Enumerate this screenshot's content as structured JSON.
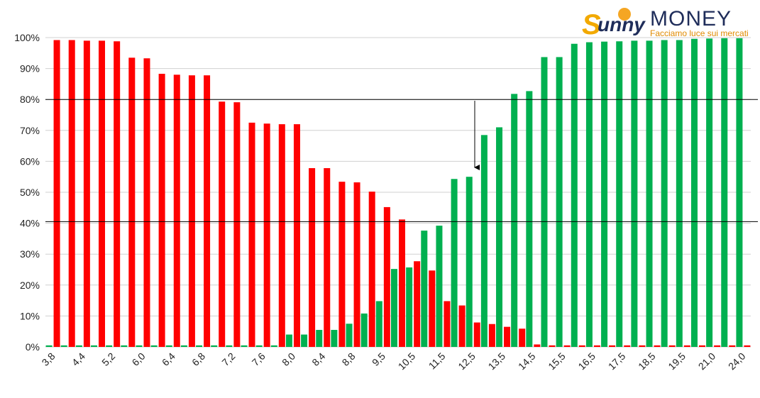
{
  "chart_data": {
    "type": "bar",
    "logo": {
      "brand_a": "unny",
      "brand_b": "MONEY",
      "tagline": "Facciamo luce sui mercati"
    },
    "categories": [
      "3,8",
      null,
      "4,4",
      null,
      "5,2",
      null,
      "6,0",
      null,
      "6,4",
      null,
      "6,8",
      null,
      "7,2",
      null,
      "7,6",
      null,
      "8,0",
      null,
      "8,4",
      null,
      "8,8",
      null,
      "9,5",
      null,
      "10,5",
      null,
      "11,5",
      null,
      "12,5",
      null,
      "13,5",
      null,
      "14,5",
      null,
      "15,5",
      null,
      "16,5",
      null,
      "17,5",
      null,
      "18,5",
      null,
      "19,5",
      null,
      "21,0",
      null,
      "24,0"
    ],
    "series": [
      {
        "color": "#00b050",
        "values": [
          0.5,
          0.5,
          0.5,
          0.5,
          0.5,
          0.5,
          0.5,
          0.5,
          0.5,
          0.5,
          0.5,
          0.5,
          0.5,
          0.5,
          0.5,
          0.5,
          4.0,
          4.0,
          5.5,
          5.5,
          7.5,
          10.8,
          14.8,
          25.2,
          25.7,
          37.6,
          39.2,
          54.3,
          55.0,
          68.5,
          71.0,
          81.8,
          82.7,
          93.7,
          93.7,
          98.0,
          98.5,
          98.7,
          98.8,
          99.0,
          99.0,
          99.2,
          99.2,
          99.6,
          99.7,
          99.8,
          99.8
        ]
      },
      {
        "color": "#ff0000",
        "values": [
          99.2,
          99.2,
          99.0,
          99.0,
          98.8,
          93.5,
          93.3,
          88.3,
          88.0,
          87.8,
          87.8,
          79.3,
          79.1,
          72.5,
          72.2,
          72.0,
          72.0,
          57.8,
          57.8,
          53.4,
          53.2,
          50.2,
          45.2,
          41.2,
          27.7,
          24.7,
          14.8,
          13.4,
          7.9,
          7.4,
          6.5,
          5.9,
          0.8,
          0.5,
          0.5,
          0.5,
          0.5,
          0.5,
          0.5,
          0.5,
          0.5,
          0.5,
          0.5,
          0.5,
          0.5,
          0.5,
          0.5
        ]
      }
    ],
    "reference_lines": [
      80,
      40.5
    ],
    "ylim": [
      0,
      100
    ],
    "yticks": [
      {
        "value": 0,
        "label": "0%"
      },
      {
        "value": 10,
        "label": "10%"
      },
      {
        "value": 20,
        "label": "20%"
      },
      {
        "value": 30,
        "label": "30%"
      },
      {
        "value": 40,
        "label": "40%"
      },
      {
        "value": 50,
        "label": "50%"
      },
      {
        "value": 60,
        "label": "60%"
      },
      {
        "value": 70,
        "label": "70%"
      },
      {
        "value": 80,
        "label": "80%"
      },
      {
        "value": 90,
        "label": "90%"
      },
      {
        "value": 100,
        "label": "100%"
      }
    ],
    "grid": true
  }
}
